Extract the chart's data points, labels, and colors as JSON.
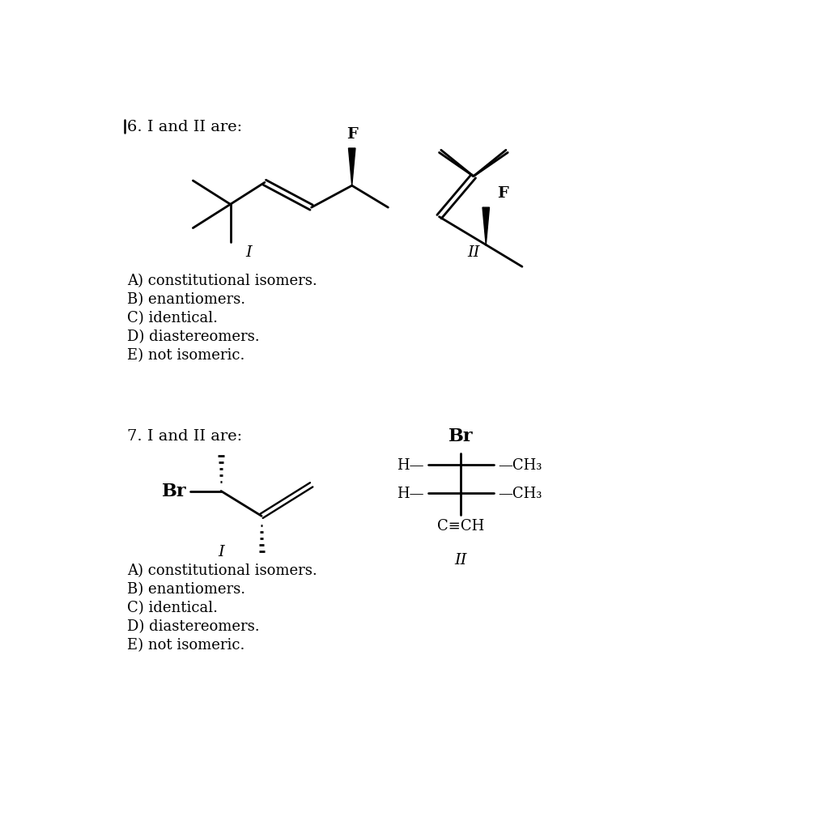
{
  "background_color": "#ffffff",
  "q6_title": "'6. I and II are:",
  "q7_title": "7. I and II are:",
  "options": [
    "A) constitutional isomers.",
    "B) enantiomers.",
    "C) identical.",
    "D) diastereomers.",
    "E) not isomeric."
  ],
  "label_I": "I",
  "label_II": "II",
  "font_size": 13,
  "title_font_size": 14,
  "lw": 2.0
}
